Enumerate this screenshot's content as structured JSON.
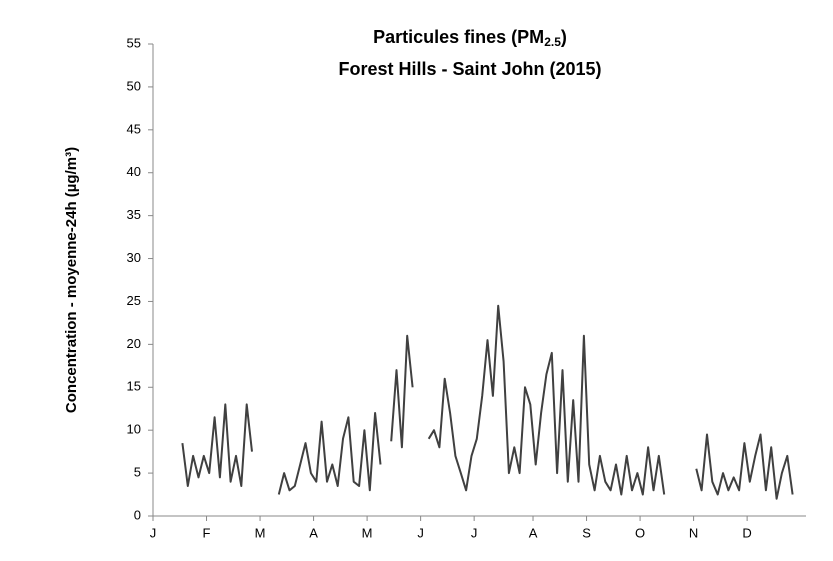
{
  "chart_data": {
    "type": "line",
    "title": [
      "Particules fines (PM",
      "2.5",
      ")"
    ],
    "subtitle": "Forest Hills - Saint John (2015)",
    "y_label": "Concentration - moyenne-24h (µg/m³)",
    "categories": [
      "J",
      null,
      null,
      null,
      null,
      null,
      null,
      null,
      null,
      null,
      "F",
      null,
      null,
      null,
      null,
      null,
      null,
      null,
      null,
      null,
      "M",
      null,
      null,
      null,
      null,
      null,
      null,
      null,
      null,
      null,
      "A",
      null,
      null,
      null,
      null,
      null,
      null,
      null,
      null,
      null,
      "M",
      null,
      null,
      null,
      null,
      null,
      null,
      null,
      null,
      null,
      "J",
      null,
      null,
      null,
      null,
      null,
      null,
      null,
      null,
      null,
      "J",
      null,
      null,
      null,
      null,
      null,
      null,
      null,
      null,
      null,
      null,
      "A",
      null,
      null,
      null,
      null,
      null,
      null,
      null,
      null,
      null,
      "S",
      null,
      null,
      null,
      null,
      null,
      null,
      null,
      null,
      null,
      "O",
      null,
      null,
      null,
      null,
      null,
      null,
      null,
      null,
      null,
      "N",
      null,
      null,
      null,
      null,
      null,
      null,
      null,
      null,
      null,
      "D",
      null,
      null,
      null,
      null,
      null,
      null,
      null,
      null,
      null,
      null
    ],
    "series": [
      {
        "name": "PM2.5",
        "color": "#404040",
        "values": [
          null,
          null,
          null,
          null,
          null,
          8.5,
          3.5,
          7,
          4.5,
          7,
          5,
          11.5,
          4.5,
          13,
          4,
          7,
          3.5,
          13,
          7.5,
          null,
          null,
          null,
          null,
          2.5,
          5,
          3,
          3.5,
          6,
          8.5,
          5,
          4,
          11,
          4,
          6,
          3.5,
          9,
          11.5,
          4,
          3.5,
          10,
          3,
          12,
          6,
          null,
          8.7,
          17,
          8,
          21,
          15,
          null,
          null,
          9,
          10,
          8,
          16,
          12,
          7,
          5,
          3,
          7,
          9,
          14,
          20.5,
          14,
          24.5,
          18,
          5,
          8,
          5,
          15,
          13,
          6,
          12,
          16.5,
          19,
          5,
          17,
          4,
          13.5,
          4,
          21,
          6,
          3,
          7,
          4,
          3,
          6,
          2.5,
          7,
          3,
          5,
          2.5,
          8,
          3,
          7,
          2.5,
          null,
          null,
          null,
          null,
          null,
          5.5,
          3,
          9.5,
          4,
          2.5,
          5,
          3,
          4.5,
          3,
          8.5,
          4,
          7,
          9.5,
          3,
          8,
          2,
          5,
          7,
          2.5,
          null,
          null
        ]
      }
    ],
    "ylim": [
      0,
      55
    ],
    "yticks": [
      0,
      5,
      10,
      15,
      20,
      25,
      30,
      35,
      40,
      45,
      50,
      55
    ],
    "grid": false
  }
}
